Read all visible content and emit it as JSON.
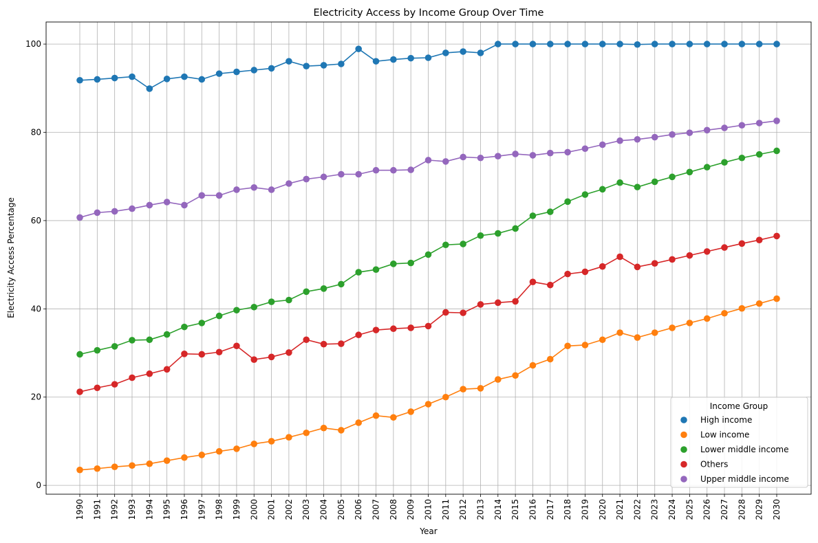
{
  "chart_data": {
    "type": "line",
    "title": "Electricity Access by Income Group Over Time",
    "xlabel": "Year",
    "ylabel": "Electricity Access Percentage",
    "ylim": [
      -2,
      105
    ],
    "yticks": [
      0,
      20,
      40,
      60,
      80,
      100
    ],
    "grid": true,
    "legend": {
      "title": "Income Group",
      "position": "bottom-right"
    },
    "x": [
      1990,
      1991,
      1992,
      1993,
      1994,
      1995,
      1996,
      1997,
      1998,
      1999,
      2000,
      2001,
      2002,
      2003,
      2004,
      2005,
      2006,
      2007,
      2008,
      2009,
      2010,
      2011,
      2012,
      2013,
      2014,
      2015,
      2016,
      2017,
      2018,
      2019,
      2020,
      2021,
      2022,
      2023,
      2024,
      2025,
      2026,
      2027,
      2028,
      2029,
      2030
    ],
    "series": [
      {
        "name": "High income",
        "color": "#1f77b4",
        "values": [
          91.8,
          92.0,
          92.3,
          92.6,
          89.9,
          92.1,
          92.6,
          92.0,
          93.3,
          93.7,
          94.1,
          94.5,
          96.1,
          95.0,
          95.2,
          95.5,
          98.9,
          96.1,
          96.5,
          96.8,
          96.9,
          98.0,
          98.3,
          98.0,
          100.0,
          100.0,
          100.0,
          100.0,
          100.0,
          100.0,
          100.0,
          100.0,
          99.9,
          100.0,
          100.0,
          100.0,
          100.0,
          100.0,
          100.0,
          100.0,
          100.0
        ]
      },
      {
        "name": "Low income",
        "color": "#ff7f0e",
        "values": [
          3.5,
          3.8,
          4.2,
          4.5,
          4.9,
          5.6,
          6.3,
          6.9,
          7.7,
          8.3,
          9.4,
          10.0,
          10.9,
          11.9,
          13.0,
          12.5,
          14.2,
          15.8,
          15.4,
          16.7,
          18.4,
          20.0,
          21.8,
          22.0,
          24.0,
          24.9,
          27.2,
          28.6,
          31.6,
          31.8,
          33.0,
          34.6,
          33.5,
          34.6,
          35.7,
          36.8,
          37.8,
          39.0,
          40.1,
          41.2,
          42.3
        ]
      },
      {
        "name": "Lower middle income",
        "color": "#2ca02c",
        "values": [
          29.7,
          30.6,
          31.5,
          32.9,
          33.0,
          34.2,
          35.9,
          36.8,
          38.4,
          39.7,
          40.4,
          41.6,
          42.0,
          43.9,
          44.6,
          45.6,
          48.3,
          48.9,
          50.2,
          50.4,
          52.3,
          54.5,
          54.7,
          56.6,
          57.1,
          58.2,
          61.1,
          62.0,
          64.3,
          65.9,
          67.1,
          68.6,
          67.6,
          68.8,
          69.9,
          71.0,
          72.1,
          73.2,
          74.2,
          75.0,
          75.8
        ]
      },
      {
        "name": "Others",
        "color": "#d62728",
        "values": [
          21.2,
          22.1,
          22.9,
          24.4,
          25.3,
          26.3,
          29.8,
          29.7,
          30.2,
          31.6,
          28.5,
          29.1,
          30.1,
          33.0,
          32.0,
          32.1,
          34.1,
          35.2,
          35.5,
          35.7,
          36.1,
          39.2,
          39.1,
          41.0,
          41.4,
          41.7,
          46.1,
          45.4,
          47.9,
          48.4,
          49.6,
          51.8,
          49.5,
          50.3,
          51.2,
          52.1,
          53.0,
          53.9,
          54.8,
          55.6,
          56.5
        ]
      },
      {
        "name": "Upper middle income",
        "color": "#9467bd",
        "values": [
          60.7,
          61.8,
          62.1,
          62.7,
          63.5,
          64.2,
          63.5,
          65.7,
          65.7,
          67.0,
          67.5,
          67.0,
          68.4,
          69.4,
          69.9,
          70.5,
          70.5,
          71.4,
          71.4,
          71.5,
          73.7,
          73.4,
          74.4,
          74.2,
          74.6,
          75.1,
          74.8,
          75.3,
          75.5,
          76.3,
          77.2,
          78.1,
          78.4,
          78.9,
          79.5,
          79.9,
          80.5,
          81.0,
          81.6,
          82.1,
          82.6
        ]
      }
    ]
  }
}
